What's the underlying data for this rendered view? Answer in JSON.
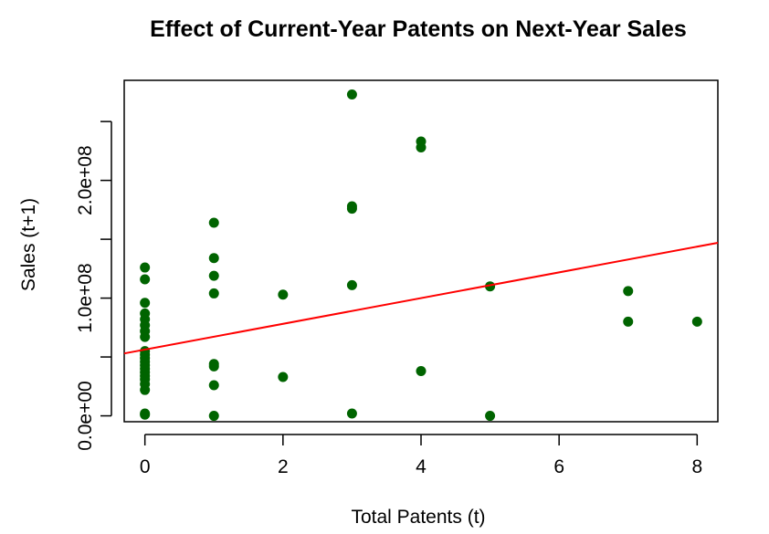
{
  "chart_data": {
    "type": "scatter",
    "title": "Effect of Current-Year Patents on Next-Year Sales",
    "xlabel": "Total Patents (t)",
    "ylabel": "Sales (t+1)",
    "xlim": [
      -0.3,
      8.3
    ],
    "ylim": [
      -5000000,
      285000000
    ],
    "x_ticks": [
      0,
      2,
      4,
      6,
      8
    ],
    "x_tick_labels": [
      "0",
      "2",
      "4",
      "6",
      "8"
    ],
    "y_ticks": [
      0,
      50000000,
      100000000,
      150000000,
      200000000,
      250000000
    ],
    "y_tick_labels": [
      "0.0e+00",
      "",
      "1.0e+08",
      "",
      "2.0e+08",
      ""
    ],
    "grid": false,
    "legend": "none",
    "point_color": "#006400",
    "line_color": "#ff0000",
    "points": [
      {
        "x": 0,
        "y": 126000000
      },
      {
        "x": 0,
        "y": 116000000
      },
      {
        "x": 0,
        "y": 96000000
      },
      {
        "x": 0,
        "y": 87000000
      },
      {
        "x": 0,
        "y": 82000000
      },
      {
        "x": 0,
        "y": 77000000
      },
      {
        "x": 0,
        "y": 72000000
      },
      {
        "x": 0,
        "y": 67000000
      },
      {
        "x": 0,
        "y": 55000000
      },
      {
        "x": 0,
        "y": 52000000
      },
      {
        "x": 0,
        "y": 49000000
      },
      {
        "x": 0,
        "y": 46000000
      },
      {
        "x": 0,
        "y": 43000000
      },
      {
        "x": 0,
        "y": 40000000
      },
      {
        "x": 0,
        "y": 37000000
      },
      {
        "x": 0,
        "y": 34000000
      },
      {
        "x": 0,
        "y": 31000000
      },
      {
        "x": 0,
        "y": 27000000
      },
      {
        "x": 0,
        "y": 22000000
      },
      {
        "x": 0,
        "y": 2000000
      },
      {
        "x": 0,
        "y": 1000000
      },
      {
        "x": 1,
        "y": 164000000
      },
      {
        "x": 1,
        "y": 134000000
      },
      {
        "x": 1,
        "y": 119000000
      },
      {
        "x": 1,
        "y": 104000000
      },
      {
        "x": 1,
        "y": 44000000
      },
      {
        "x": 1,
        "y": 42000000
      },
      {
        "x": 1,
        "y": 26000000
      },
      {
        "x": 1,
        "y": 0
      },
      {
        "x": 2,
        "y": 103000000
      },
      {
        "x": 2,
        "y": 33000000
      },
      {
        "x": 3,
        "y": 273000000
      },
      {
        "x": 3,
        "y": 178000000
      },
      {
        "x": 3,
        "y": 176000000
      },
      {
        "x": 3,
        "y": 111000000
      },
      {
        "x": 3,
        "y": 2000000
      },
      {
        "x": 4,
        "y": 233000000
      },
      {
        "x": 4,
        "y": 228000000
      },
      {
        "x": 4,
        "y": 38000000
      },
      {
        "x": 5,
        "y": 110000000
      },
      {
        "x": 5,
        "y": 0
      },
      {
        "x": 7,
        "y": 106000000
      },
      {
        "x": 7,
        "y": 80000000
      },
      {
        "x": 8,
        "y": 80000000
      }
    ],
    "fit_line": {
      "x": [
        -0.3,
        8.3
      ],
      "y": [
        53000000,
        147000000
      ]
    }
  }
}
